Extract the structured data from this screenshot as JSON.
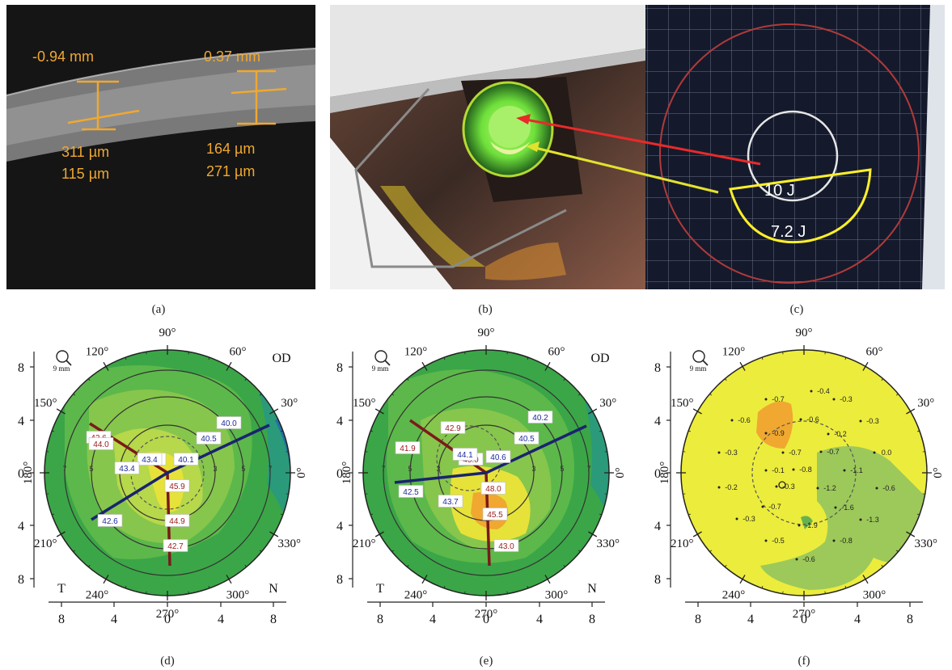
{
  "captions": [
    "(a)",
    "(b)",
    "(c)",
    "(d)",
    "(e)",
    "(f)"
  ],
  "oct": {
    "left": {
      "offset": "-0.94 mm",
      "v1": "311 µm",
      "v2": "115 µm"
    },
    "right": {
      "offset": "0.37 mm",
      "v1": "164 µm",
      "v2": "271 µm"
    }
  },
  "fluence": {
    "inner": "10 J",
    "outer": "7.2 J"
  },
  "maps": {
    "eye": "OD",
    "temporal": "T",
    "nasal": "N",
    "scale_label": "9 mm",
    "angle_labels": [
      "90°",
      "60°",
      "30°",
      "0°",
      "330°",
      "300°",
      "270°",
      "240°",
      "210°",
      "180°",
      "150°",
      "120°"
    ],
    "y_ticks": [
      "8",
      "4",
      "0",
      "4",
      "8"
    ],
    "x_ticks": [
      "8",
      "4",
      "0",
      "4",
      "8"
    ],
    "ring_labels": [
      "7",
      "5",
      "3",
      "3",
      "5",
      "7"
    ],
    "d_red": [
      "42.6",
      "44.0",
      "45.8",
      "45.9",
      "44.9",
      "42.7"
    ],
    "d_blue": [
      "40.0",
      "40.5",
      "40.1",
      "43.4",
      "43.4",
      "42.6"
    ],
    "e_red": [
      "41.9",
      "42.9",
      "45.0",
      "48.0",
      "45.5",
      "43.0"
    ],
    "e_blue": [
      "40.2",
      "40.5",
      "40.6",
      "44.1",
      "43.7",
      "42.5"
    ],
    "f_values": [
      "-0.4",
      "-0.3",
      "-0.7",
      "-0.6",
      "-0.3",
      "-0.6",
      "-0.2",
      "-0.9",
      "-0.7",
      "-0.7",
      "0.0",
      "-0.3",
      "-0.1",
      "-0.8",
      "-1.1",
      "-0.2",
      "-0.3",
      "-1.2",
      "-0.6",
      "-0.7",
      "-1.6",
      "-1.3",
      "-0.3",
      "-1.9",
      "-0.5",
      "-0.8",
      "-0.6"
    ]
  }
}
